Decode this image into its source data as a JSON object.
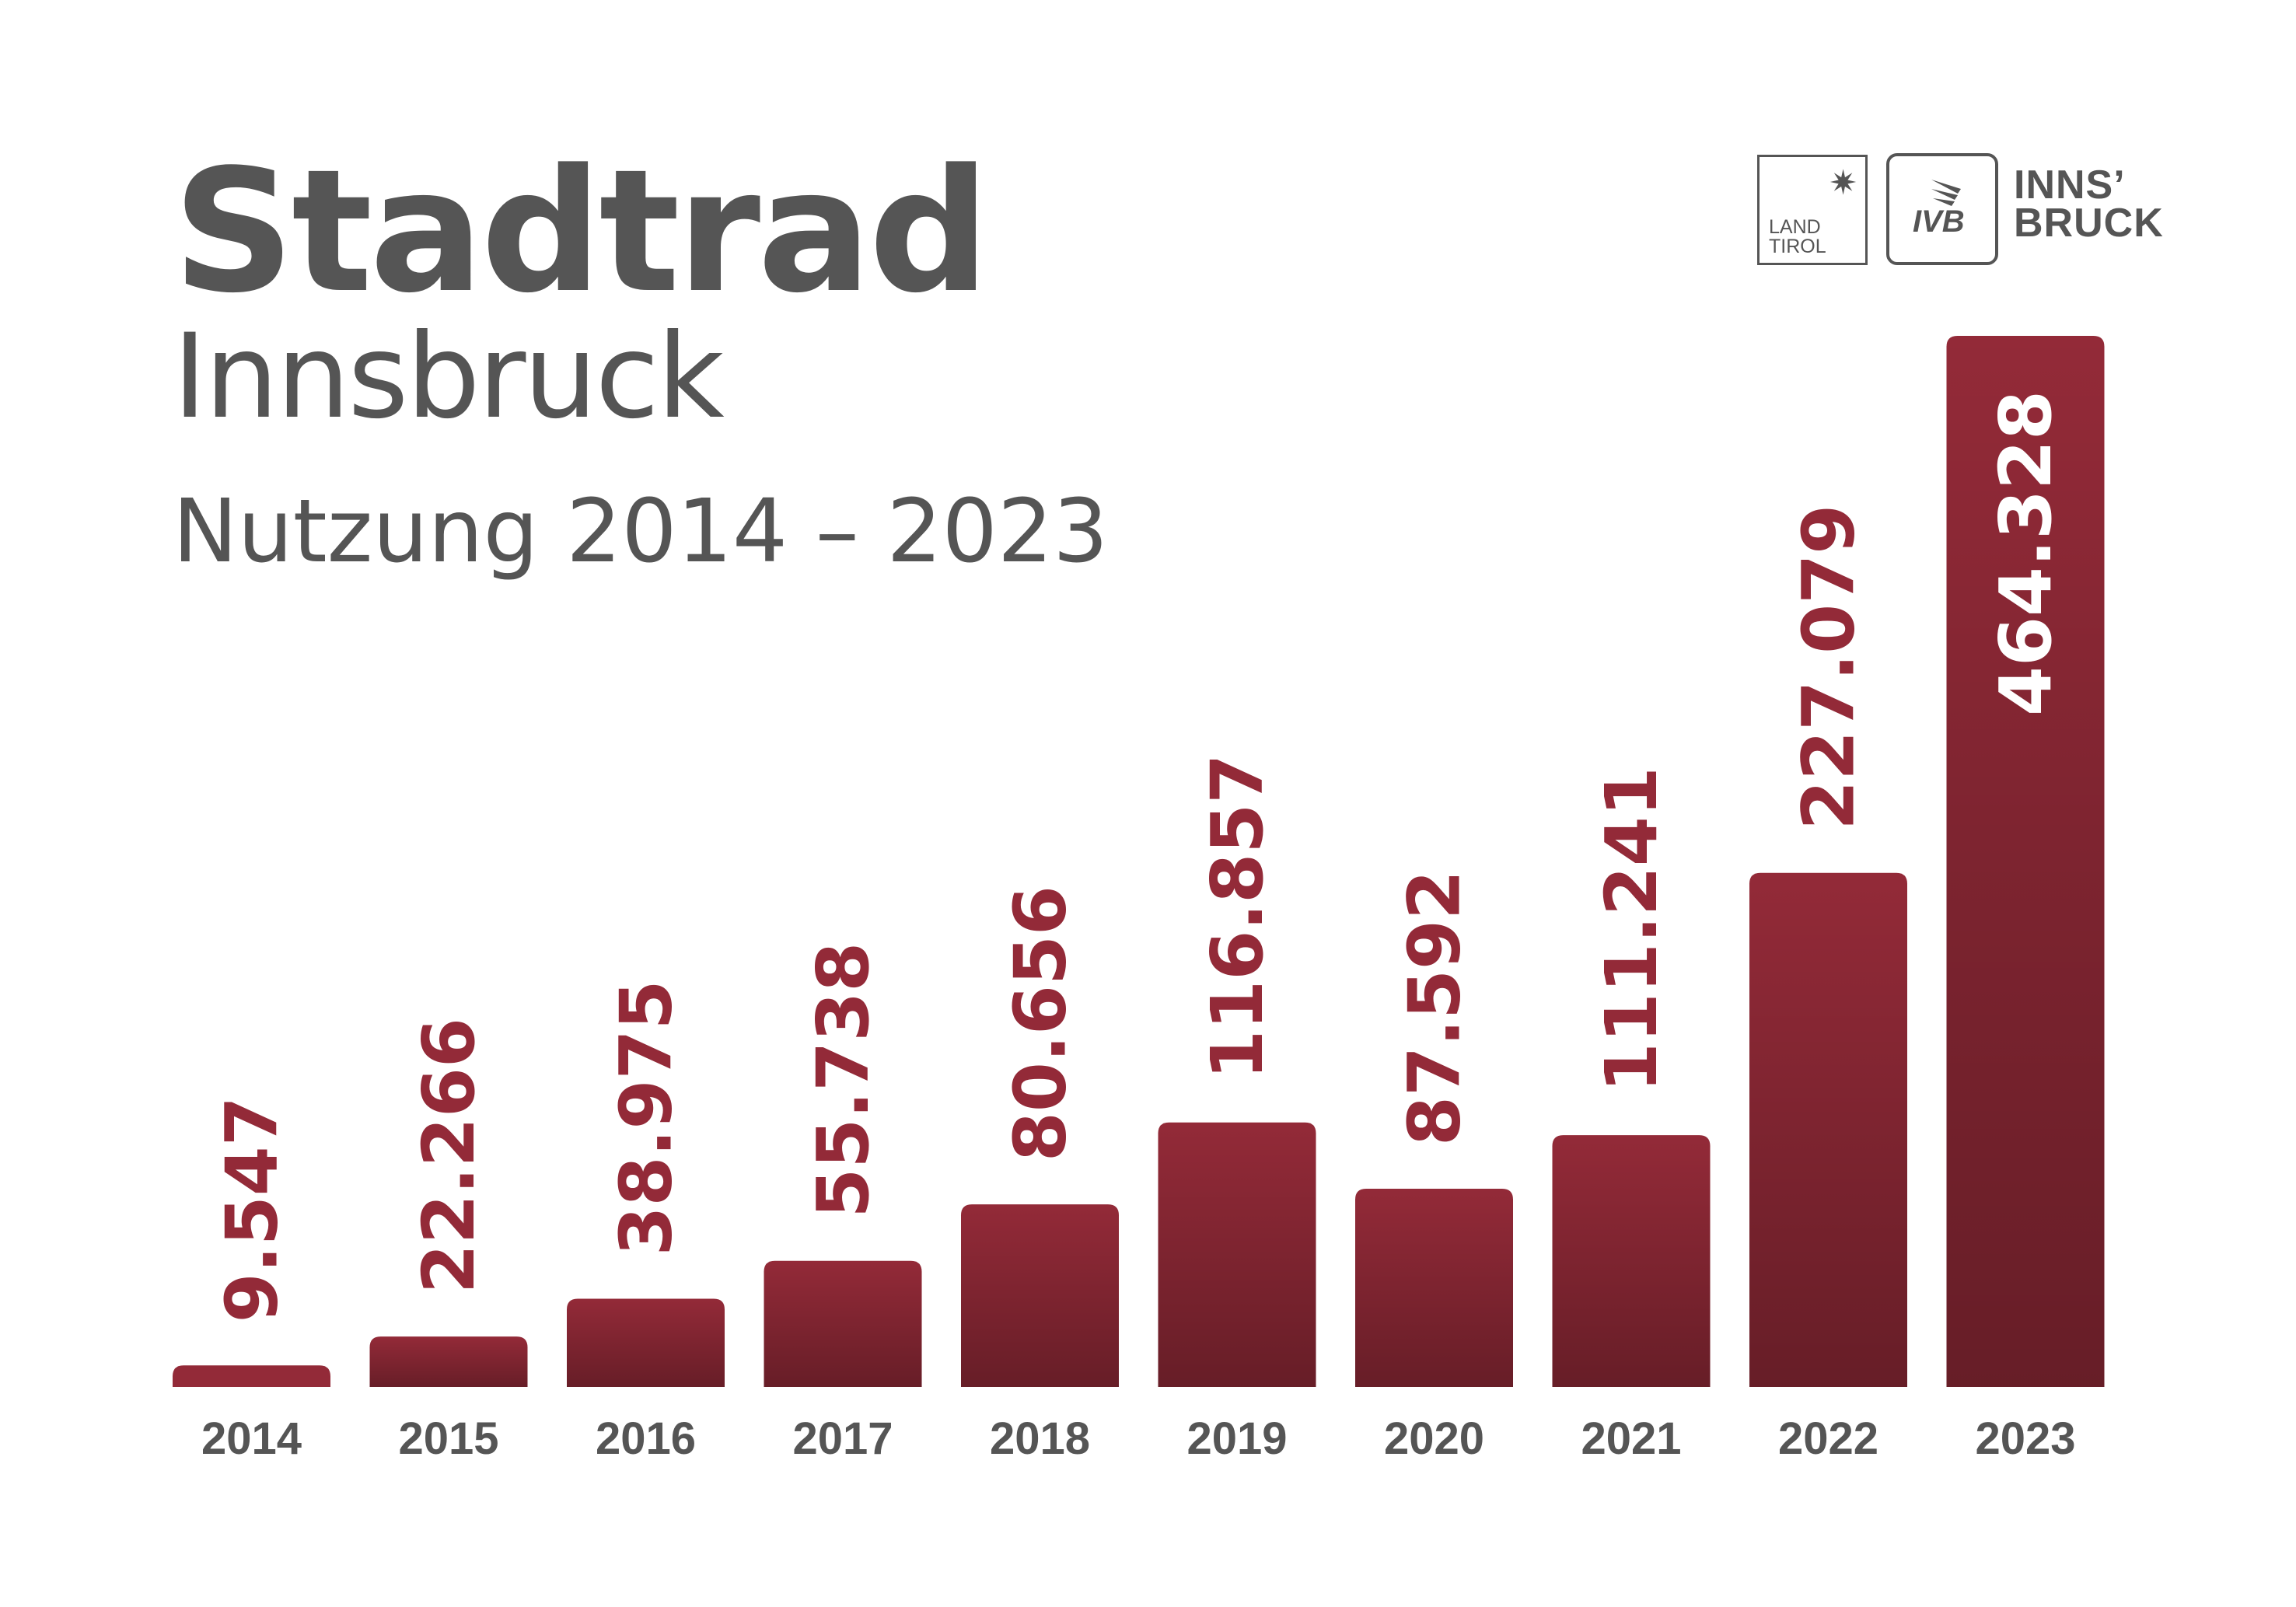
{
  "header": {
    "title": "Stadtrad",
    "subtitle": "Innsbruck",
    "period": "Nutzung 2014 – 2023"
  },
  "logos": {
    "land_tirol": "LAND TIROL",
    "land_tirol_lines": [
      "LAND",
      "TIROL"
    ],
    "ivb": "IVB",
    "innsbruck_lines": [
      "INNS’",
      "BRUCK"
    ]
  },
  "colors": {
    "bar": "#932a38",
    "text": "#555555",
    "label_inside": "#ffffff"
  },
  "chart_data": {
    "type": "bar",
    "title": "Stadtrad Innsbruck – Nutzung 2014 – 2023",
    "categories": [
      "2014",
      "2015",
      "2016",
      "2017",
      "2018",
      "2019",
      "2020",
      "2021",
      "2022",
      "2023"
    ],
    "values": [
      9547,
      22266,
      38975,
      55738,
      80656,
      116857,
      87592,
      111241,
      227079,
      464328
    ],
    "data_labels": [
      "9.547",
      "22.266",
      "38.975",
      "55.738",
      "80.656",
      "116.857",
      "87.592",
      "111.241",
      "227.079",
      "464.328"
    ],
    "xlabel": "",
    "ylabel": "",
    "ylim": [
      0,
      464328
    ],
    "grid": false,
    "legend": "none"
  }
}
